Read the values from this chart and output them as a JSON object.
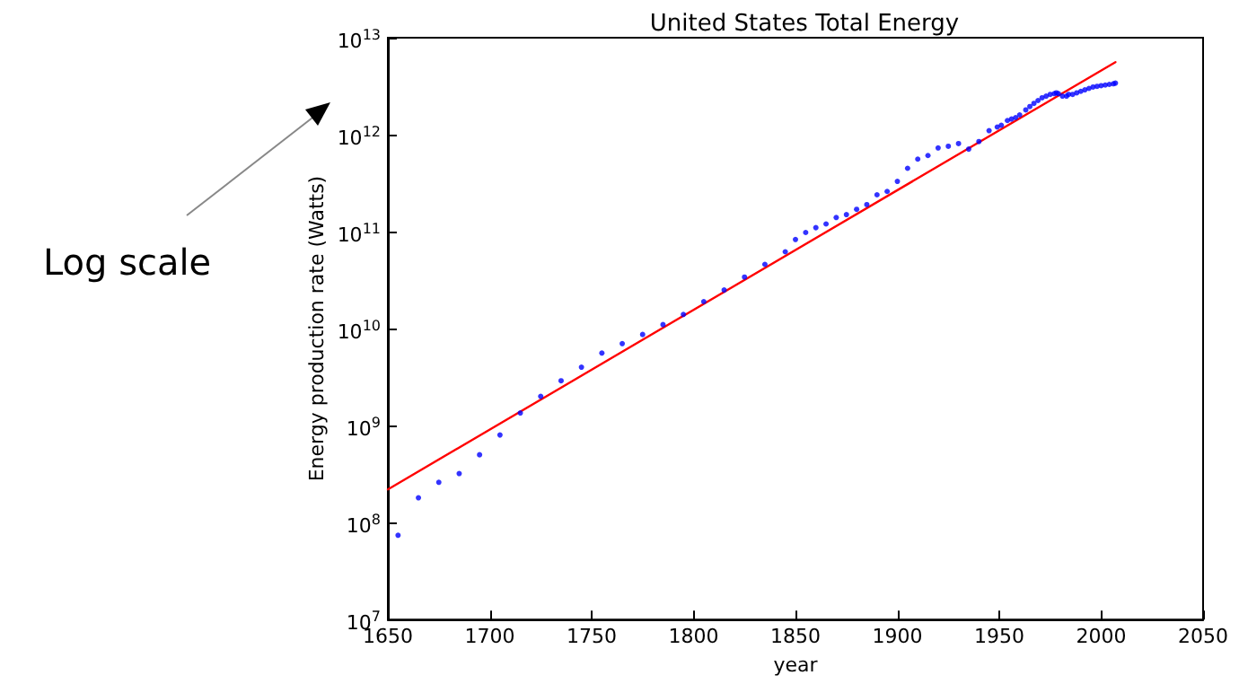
{
  "chart_data": {
    "type": "scatter",
    "title": "United States Total Energy",
    "xlabel": "year",
    "ylabel": "Energy production rate (Watts)",
    "annotations": [
      "Log scale"
    ],
    "log": "y",
    "grid": false,
    "marker": "circle",
    "xlim": [
      1650,
      2050
    ],
    "xticks": [
      1650,
      1700,
      1750,
      1800,
      1850,
      1900,
      1950,
      2000,
      2050
    ],
    "ylim": [
      10000000.0,
      10000000000000.0
    ],
    "yticks": [
      {
        "value": 10000000.0,
        "label": "10$^{7}$"
      },
      {
        "value": 100000000.0,
        "label": "10$^{8}$"
      },
      {
        "value": 1000000000.0,
        "label": "10$^{9}$"
      },
      {
        "value": 10000000000.0,
        "label": "10$^{10}$"
      },
      {
        "value": 100000000000.0,
        "label": "10$^{11}$"
      },
      {
        "value": 1000000000000.0,
        "label": "10$^{12}$"
      },
      {
        "value": 10000000000000.0,
        "label": "10$^{13}$"
      }
    ],
    "series": [
      {
        "color": "#0000ff",
        "x": [
          1655,
          1665,
          1675,
          1685,
          1695,
          1705,
          1715,
          1725,
          1735,
          1745,
          1755,
          1765,
          1775,
          1785,
          1795,
          1805,
          1815,
          1825,
          1835,
          1845,
          1850,
          1855,
          1860,
          1865,
          1870,
          1875,
          1880,
          1885,
          1890,
          1895,
          1900,
          1905,
          1910,
          1915,
          1920,
          1925,
          1930,
          1935,
          1940,
          1945,
          1949,
          1951,
          1954,
          1956,
          1958,
          1960,
          1963,
          1965,
          1967,
          1969,
          1971,
          1973,
          1975,
          1977,
          1978,
          1979,
          1981,
          1983,
          1984,
          1986,
          1988,
          1990,
          1992,
          1994,
          1996,
          1998,
          2000,
          2002,
          2004,
          2006,
          2007
        ],
        "values": [
          74000000.0,
          180000000.0,
          260000000.0,
          320000000.0,
          500000000.0,
          800000000.0,
          1350000000.0,
          2000000000.0,
          2900000000.0,
          4000000000.0,
          5600000000.0,
          7000000000.0,
          8700000000.0,
          11000000000.0,
          14000000000.0,
          19000000000.0,
          25000000000.0,
          34000000000.0,
          46000000000.0,
          62000000000.0,
          83000000000.0,
          98000000000.0,
          110000000000.0,
          120000000000.0,
          140000000000.0,
          150000000000.0,
          170000000000.0,
          190000000000.0,
          240000000000.0,
          260000000000.0,
          330000000000.0,
          450000000000.0,
          560000000000.0,
          610000000000.0,
          730000000000.0,
          760000000000.0,
          810000000000.0,
          710000000000.0,
          850000000000.0,
          1100000000000.0,
          1200000000000.0,
          1250000000000.0,
          1400000000000.0,
          1450000000000.0,
          1500000000000.0,
          1600000000000.0,
          1800000000000.0,
          1950000000000.0,
          2100000000000.0,
          2250000000000.0,
          2400000000000.0,
          2500000000000.0,
          2600000000000.0,
          2650000000000.0,
          2700000000000.0,
          2650000000000.0,
          2500000000000.0,
          2500000000000.0,
          2600000000000.0,
          2600000000000.0,
          2700000000000.0,
          2800000000000.0,
          2900000000000.0,
          3000000000000.0,
          3100000000000.0,
          3150000000000.0,
          3200000000000.0,
          3250000000000.0,
          3300000000000.0,
          3350000000000.0,
          3400000000000.0
        ]
      },
      {
        "type": "line",
        "color": "#ff0000",
        "marker": "none",
        "x": [
          1650,
          2007
        ],
        "values": [
          220000000.0,
          5600000000000.0
        ]
      }
    ]
  }
}
